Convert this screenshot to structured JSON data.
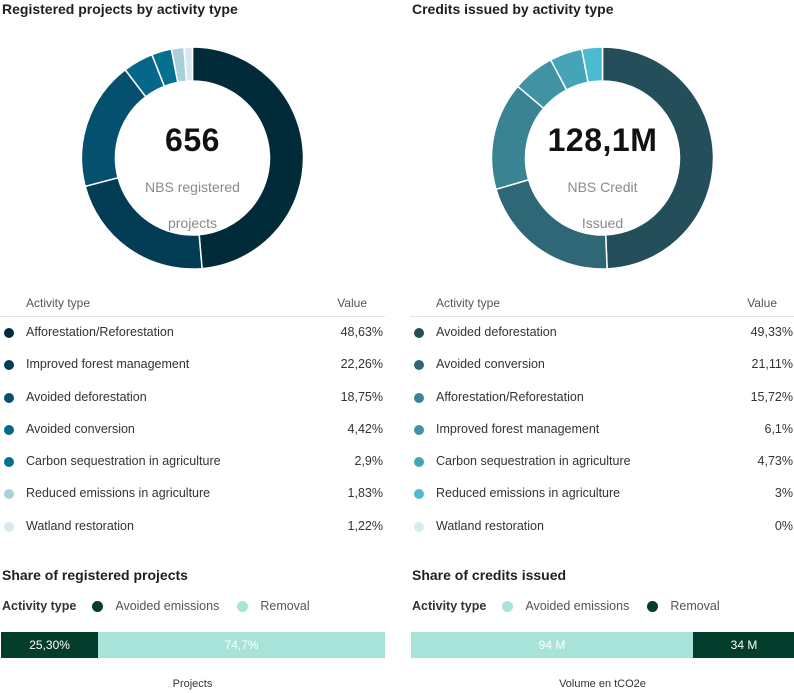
{
  "charts": [
    {
      "title": "Registered projects by activity type",
      "center": {
        "value": "656",
        "label_lines": [
          "NBS registered",
          "projects"
        ]
      },
      "table": {
        "col_type": "Activity type",
        "col_value": "Value",
        "rows": [
          {
            "label": "Afforestation/Reforestation",
            "value": "48,63%",
            "color": "#022b3a"
          },
          {
            "label": "Improved forest management",
            "value": "22,26%",
            "color": "#033d55"
          },
          {
            "label": "Avoided deforestation",
            "value": "18,75%",
            "color": "#04506e"
          },
          {
            "label": "Avoided conversion",
            "value": "4,42%",
            "color": "#05688a"
          },
          {
            "label": "Carbon sequestration in agriculture",
            "value": "2,9%",
            "color": "#04708f"
          },
          {
            "label": "Reduced emissions in agriculture",
            "value": "1,83%",
            "color": "#aacfdb"
          },
          {
            "label": "Watland restoration",
            "value": "1,22%",
            "color": "#d7e8ee"
          }
        ]
      },
      "share": {
        "title": "Share of registered projects",
        "legend_title": "Activity type",
        "legend": [
          {
            "label": "Avoided emissions",
            "color": "#053d2c"
          },
          {
            "label": "Removal",
            "color": "#a8e3da"
          }
        ],
        "segments": [
          {
            "label": "25,30%",
            "value": 25.3,
            "color": "#053d2c",
            "text_color": "#ffffff"
          },
          {
            "label": "74,7%",
            "value": 74.7,
            "color": "#a8e3da",
            "text_color": "#ffffff"
          }
        ],
        "axis_title": "Projects"
      }
    },
    {
      "title": "Credits issued by activity type",
      "center": {
        "value": "128,1M",
        "label_lines": [
          "NBS Credit",
          "Issued"
        ]
      },
      "table": {
        "col_type": "Activity type",
        "col_value": "Value",
        "rows": [
          {
            "label": "Avoided deforestation",
            "value": "49,33%",
            "color": "#234e5a"
          },
          {
            "label": "Avoided conversion",
            "value": "21,11%",
            "color": "#2e6876"
          },
          {
            "label": "Afforestation/Reforestation",
            "value": "15,72%",
            "color": "#3a8392"
          },
          {
            "label": "Improved forest management",
            "value": "6,1%",
            "color": "#3f93a3"
          },
          {
            "label": "Carbon sequestration in agriculture",
            "value": "4,73%",
            "color": "#45a5b8"
          },
          {
            "label": "Reduced emissions in agriculture",
            "value": "3%",
            "color": "#4cbad0"
          },
          {
            "label": "Watland restoration",
            "value": "0%",
            "color": "#d6ecf1"
          }
        ]
      },
      "share": {
        "title": "Share of credits issued",
        "legend_title": "Activity type",
        "legend": [
          {
            "label": "Avoided emissions",
            "color": "#a8e3da"
          },
          {
            "label": "Removal",
            "color": "#053d2c"
          }
        ],
        "segments": [
          {
            "label": "94 M",
            "value": 94,
            "color": "#a8e3da",
            "text_color": "#ffffff"
          },
          {
            "label": "34 M",
            "value": 34,
            "color": "#053d2c",
            "text_color": "#ffffff"
          }
        ],
        "axis_title": "Volume en tCO2e"
      }
    }
  ],
  "chart_data": [
    {
      "type": "pie",
      "title": "Registered projects by activity type",
      "categories": [
        "Afforestation/Reforestation",
        "Improved forest management",
        "Avoided deforestation",
        "Avoided conversion",
        "Carbon sequestration in agriculture",
        "Reduced emissions in agriculture",
        "Watland restoration"
      ],
      "values": [
        48.63,
        22.26,
        18.75,
        4.42,
        2.9,
        1.83,
        1.22
      ]
    },
    {
      "type": "pie",
      "title": "Credits issued by activity type",
      "categories": [
        "Avoided deforestation",
        "Avoided conversion",
        "Afforestation/Reforestation",
        "Improved forest management",
        "Carbon sequestration in agriculture",
        "Reduced emissions in agriculture",
        "Watland restoration"
      ],
      "values": [
        49.33,
        21.11,
        15.72,
        6.1,
        4.73,
        3,
        0
      ]
    },
    {
      "type": "bar",
      "title": "Share of registered projects",
      "categories": [
        "Avoided emissions",
        "Removal"
      ],
      "values": [
        25.3,
        74.7
      ],
      "xlabel": "Projects"
    },
    {
      "type": "bar",
      "title": "Share of credits issued",
      "categories": [
        "Avoided emissions",
        "Removal"
      ],
      "values": [
        94,
        34
      ],
      "xlabel": "Volume en tCO2e"
    }
  ]
}
